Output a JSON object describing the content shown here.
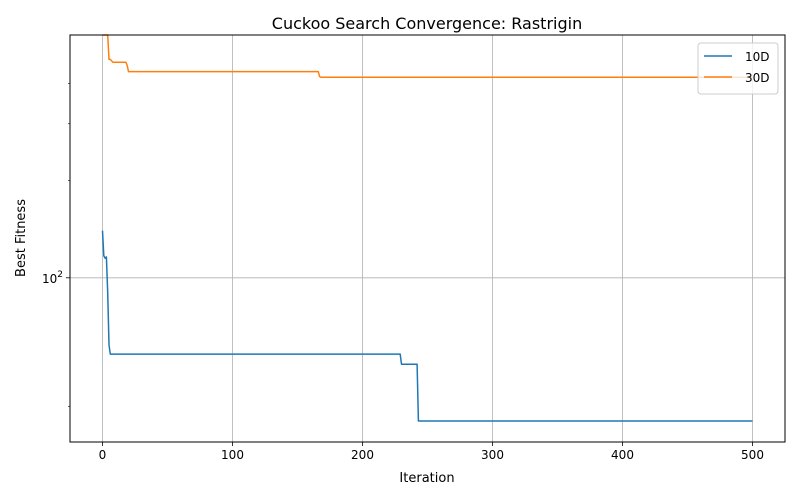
{
  "chart_data": {
    "type": "line",
    "title": "Cuckoo Search Convergence: Rastrigin",
    "xlabel": "Iteration",
    "ylabel": "Best Fitness",
    "yscale": "log",
    "xlim": [
      -25,
      525
    ],
    "ylim": [
      31,
      565
    ],
    "xticks": [
      0,
      100,
      200,
      300,
      400,
      500
    ],
    "xtick_labels": [
      "0",
      "100",
      "200",
      "300",
      "400",
      "500"
    ],
    "ytick_labeled": [
      {
        "value": 100,
        "base": "10",
        "exp": "2"
      }
    ],
    "ytick_minor": [
      40,
      200,
      300,
      400
    ],
    "grid": true,
    "legend": "top-right",
    "series": [
      {
        "name": "10D",
        "color": "#1f77b4",
        "x": [
          0,
          1,
          2,
          3,
          4,
          5,
          6,
          229,
          230,
          242,
          243,
          244,
          500
        ],
        "y": [
          140,
          117,
          115,
          116,
          90,
          62,
          58,
          58,
          54,
          54,
          36,
          36,
          36
        ]
      },
      {
        "name": "30D",
        "color": "#ff7f0e",
        "x": [
          0,
          1,
          2,
          3,
          4,
          5,
          6,
          7,
          8,
          9,
          18,
          19,
          20,
          166,
          167,
          168,
          500
        ],
        "y": [
          590,
          585,
          580,
          580,
          575,
          475,
          475,
          470,
          465,
          465,
          465,
          455,
          435,
          435,
          420,
          418,
          418
        ]
      }
    ]
  }
}
